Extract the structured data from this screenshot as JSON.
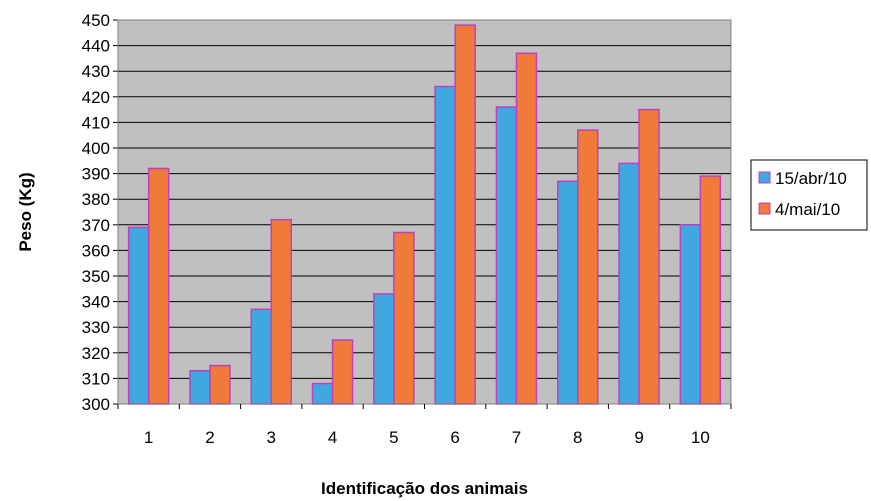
{
  "chart_data": {
    "type": "bar",
    "title": "",
    "xlabel": "Identificação dos animais",
    "ylabel": "Peso (Kg)",
    "ylim": [
      300,
      450
    ],
    "ytick_step": 10,
    "grid": true,
    "legend_position": "right",
    "categories": [
      "1",
      "2",
      "3",
      "4",
      "5",
      "6",
      "7",
      "8",
      "9",
      "10"
    ],
    "series": [
      {
        "name": "15/abr/10",
        "color": "#3FA8E0",
        "values": [
          369,
          313,
          337,
          308,
          343,
          424,
          416,
          387,
          394,
          370
        ]
      },
      {
        "name": "4/mai/10",
        "color": "#F07A3A",
        "values": [
          392,
          315,
          372,
          325,
          367,
          448,
          437,
          407,
          415,
          389
        ]
      }
    ],
    "colors": {
      "plot_background": "#C0C0C0",
      "grid_line": "#000000",
      "bar_border": "#C040C0"
    }
  }
}
